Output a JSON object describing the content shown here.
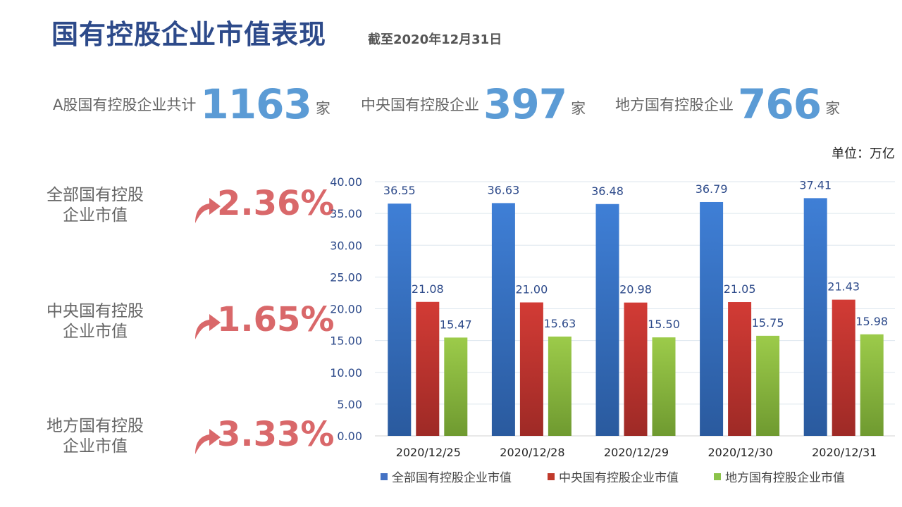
{
  "header": {
    "title": "国有控股企业市值表现",
    "subtitle": "截至2020年12月31日"
  },
  "stats": [
    {
      "label": "A股国有控股企业共计",
      "value": "1163",
      "unit": "家"
    },
    {
      "label": "中央国有控股企业",
      "value": "397",
      "unit": "家"
    },
    {
      "label": "地方国有控股企业",
      "value": "766",
      "unit": "家"
    }
  ],
  "unit_note": "单位：万亿",
  "metrics": [
    {
      "label_line1": "全部国有控股",
      "label_line2": "企业市值",
      "value": "2.36%",
      "icon": "up-arrow-icon"
    },
    {
      "label_line1": "中央国有控股",
      "label_line2": "企业市值",
      "value": "1.65%",
      "icon": "up-arrow-icon"
    },
    {
      "label_line1": "地方国有控股",
      "label_line2": "企业市值",
      "value": "3.33%",
      "icon": "up-arrow-icon"
    }
  ],
  "colors": {
    "title": "#2d4a8a",
    "stat_number": "#5b9bd5",
    "metric_value": "#d9686a",
    "series_blue": "#4472c4",
    "series_red": "#c0392b",
    "series_green": "#8bc34a"
  },
  "chart_data": {
    "type": "bar",
    "categories": [
      "2020/12/25",
      "2020/12/28",
      "2020/12/29",
      "2020/12/30",
      "2020/12/31"
    ],
    "series": [
      {
        "name": "全部国有控股企业市值",
        "values": [
          36.55,
          36.63,
          36.48,
          36.79,
          37.41
        ],
        "labels": [
          "36.55",
          "36.63",
          "36.48",
          "36.79",
          "37.41"
        ]
      },
      {
        "name": "中央国有控股企业市值",
        "values": [
          21.08,
          21.0,
          20.98,
          21.05,
          21.43
        ],
        "labels": [
          "21.08",
          "21.00",
          "20.98",
          "21.05",
          "21.43"
        ]
      },
      {
        "name": "地方国有控股企业市值",
        "values": [
          15.47,
          15.63,
          15.5,
          15.75,
          15.98
        ],
        "labels": [
          "15.47",
          "15.63",
          "15.50",
          "15.75",
          "15.98"
        ]
      }
    ],
    "ylim": [
      0,
      40
    ],
    "yticks": [
      "0.00",
      "5.00",
      "10.00",
      "15.00",
      "20.00",
      "25.00",
      "30.00",
      "35.00",
      "40.00"
    ],
    "grid": true,
    "legend_position": "bottom"
  }
}
